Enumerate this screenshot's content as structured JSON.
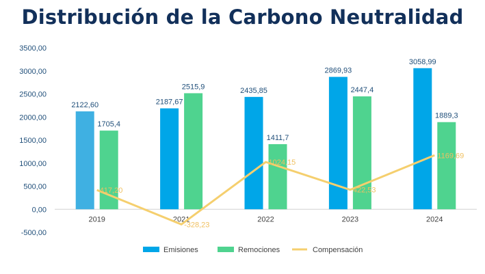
{
  "chart_data": {
    "type": "bar",
    "title": "Distribución de la Carbono Neutralidad",
    "categories": [
      "2019",
      "2021",
      "2022",
      "2023",
      "2024"
    ],
    "series": [
      {
        "name": "Emisiones",
        "kind": "bar",
        "color": "#00a6e8",
        "values": [
          2122.6,
          2187.67,
          2435.85,
          2869.93,
          3058.99
        ],
        "labels": [
          "2122,60",
          "2187,67",
          "2435,85",
          "2869,93",
          "3058,99"
        ]
      },
      {
        "name": "Remociones",
        "kind": "bar",
        "color": "#4fd38f",
        "values": [
          1705.4,
          2515.9,
          1411.7,
          2447.4,
          1889.3
        ],
        "labels": [
          "1705,4",
          "2515,9",
          "1411,7",
          "2447,4",
          "1889,3"
        ]
      },
      {
        "name": "Compensación",
        "kind": "line",
        "color": "#f5cf6e",
        "values": [
          417.2,
          -328.23,
          1024.15,
          422.53,
          1169.69
        ],
        "labels": [
          "417,20",
          "-328,23",
          "1024,15",
          "422,53",
          "1169,69"
        ]
      }
    ],
    "first_bar_color": "#3fb0e2",
    "ylim": [
      -500,
      3500
    ],
    "yticks": [
      -500,
      0,
      500,
      1000,
      1500,
      2000,
      2500,
      3000,
      3500
    ],
    "ytick_labels": [
      "-500,00",
      "0,00",
      "500,00",
      "1000,00",
      "1500,00",
      "2000,00",
      "2500,00",
      "3000,00",
      "3500,00"
    ],
    "xlabel": "",
    "ylabel": "",
    "grid": false,
    "legend_position": "bottom"
  },
  "colors": {
    "title": "#12305a",
    "axis_text": "#1f4e79",
    "line_label": "#f0c060"
  }
}
